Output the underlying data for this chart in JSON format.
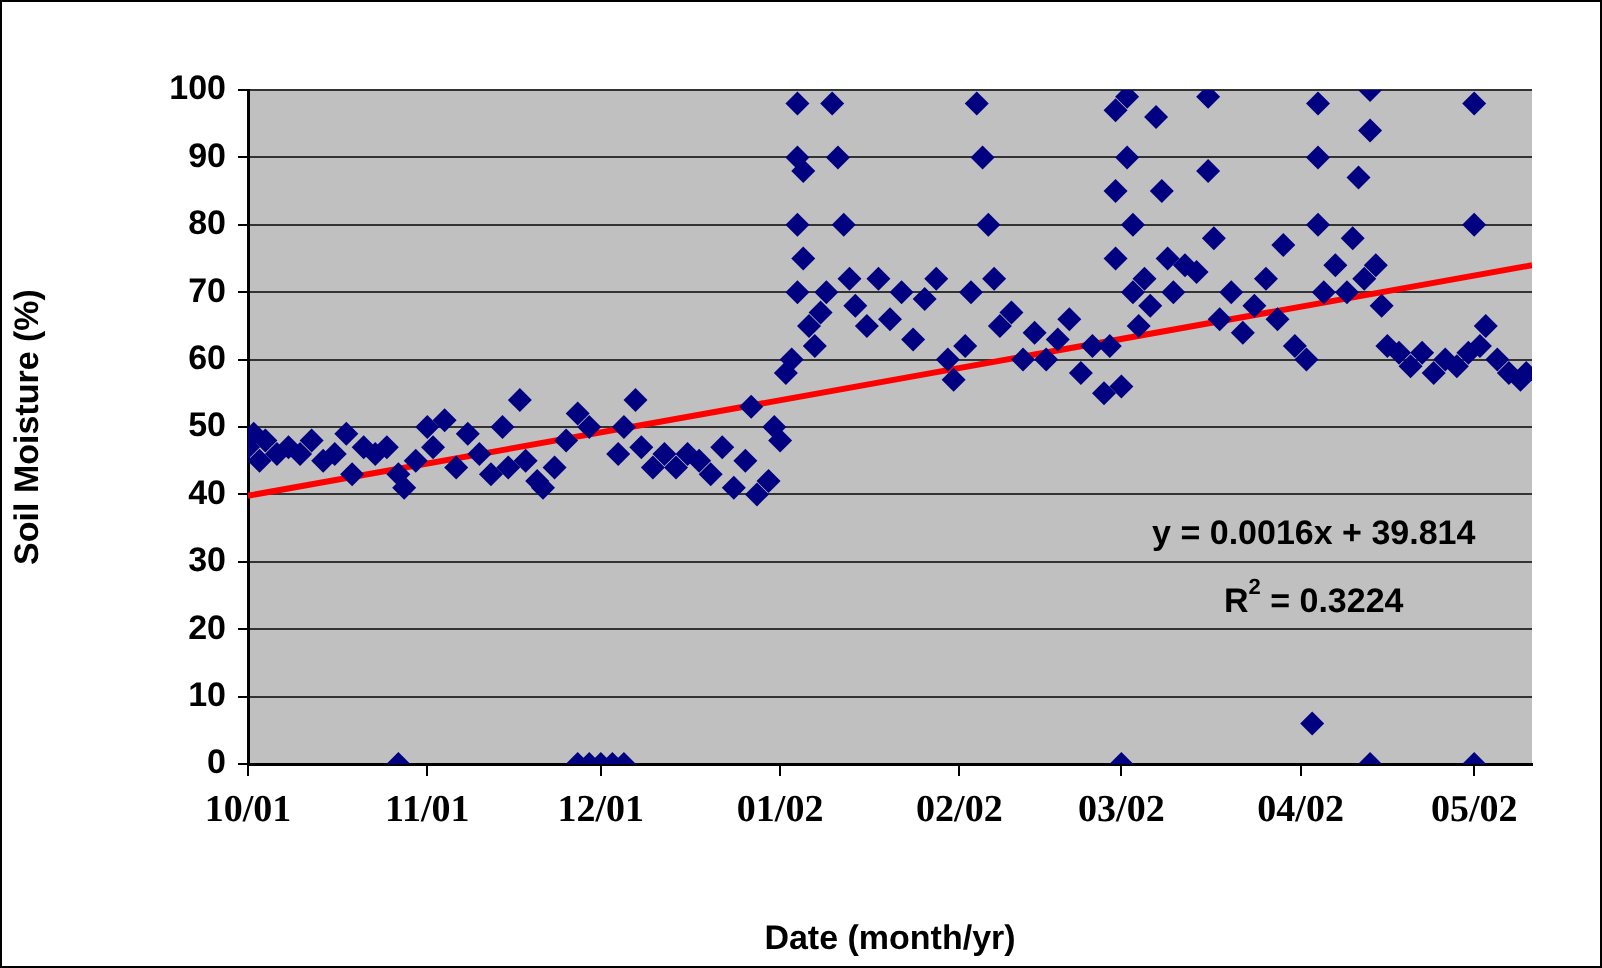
{
  "chart_data": {
    "type": "scatter",
    "xlabel": "Date (month/yr)",
    "ylabel": "Soil Moisture (%)",
    "grid": "y",
    "xlim": [
      "2001-10-01",
      "2002-05-11"
    ],
    "xticks": [
      {
        "value": "2001-10-01",
        "label": "10/01"
      },
      {
        "value": "2001-11-01",
        "label": "11/01"
      },
      {
        "value": "2001-12-01",
        "label": "12/01"
      },
      {
        "value": "2002-01-01",
        "label": "01/02"
      },
      {
        "value": "2002-02-01",
        "label": "02/02"
      },
      {
        "value": "2002-03-01",
        "label": "03/02"
      },
      {
        "value": "2002-04-01",
        "label": "04/02"
      },
      {
        "value": "2002-05-01",
        "label": "05/02"
      }
    ],
    "ylim": [
      0,
      100
    ],
    "yticks": [
      0,
      10,
      20,
      30,
      40,
      50,
      60,
      70,
      80,
      90,
      100
    ],
    "series": [
      {
        "marker": "diamond",
        "color": "#000080",
        "x": [
          "2001-10-01",
          "2001-10-02",
          "2001-10-03",
          "2001-10-04",
          "2001-10-06",
          "2001-10-08",
          "2001-10-10",
          "2001-10-12",
          "2001-10-14",
          "2001-10-16",
          "2001-10-18",
          "2001-10-19",
          "2001-10-21",
          "2001-10-23",
          "2001-10-25",
          "2001-10-27",
          "2001-10-28",
          "2001-10-30",
          "2001-11-01",
          "2001-11-02",
          "2001-11-04",
          "2001-11-06",
          "2001-11-08",
          "2001-11-10",
          "2001-11-12",
          "2001-11-14",
          "2001-11-15",
          "2001-11-17",
          "2001-11-18",
          "2001-11-20",
          "2001-11-21",
          "2001-11-23",
          "2001-11-25",
          "2001-11-27",
          "2001-11-29",
          "2001-10-27",
          "2001-11-27",
          "2001-11-29",
          "2001-12-01",
          "2001-12-03",
          "2001-12-05",
          "2001-12-04",
          "2001-12-05",
          "2001-12-07",
          "2001-12-08",
          "2001-12-10",
          "2001-12-12",
          "2001-12-14",
          "2001-12-16",
          "2001-12-18",
          "2001-12-20",
          "2001-12-22",
          "2001-12-24",
          "2001-12-26",
          "2001-12-27",
          "2001-12-28",
          "2001-12-30",
          "2001-12-31",
          "2002-01-01",
          "2002-01-02",
          "2002-01-03",
          "2002-01-04",
          "2002-01-04",
          "2002-01-04",
          "2002-01-04",
          "2002-01-05",
          "2002-01-05",
          "2002-01-06",
          "2002-01-07",
          "2002-01-08",
          "2002-01-09",
          "2002-01-10",
          "2002-01-11",
          "2002-01-12",
          "2002-01-13",
          "2002-01-14",
          "2002-01-16",
          "2002-01-18",
          "2002-01-20",
          "2002-01-22",
          "2002-01-24",
          "2002-01-26",
          "2002-01-28",
          "2002-01-30",
          "2002-01-31",
          "2002-02-02",
          "2002-02-03",
          "2002-02-04",
          "2002-02-05",
          "2002-02-06",
          "2002-02-07",
          "2002-02-08",
          "2002-02-10",
          "2002-02-12",
          "2002-02-14",
          "2002-02-16",
          "2002-02-18",
          "2002-02-20",
          "2002-02-22",
          "2002-02-24",
          "2002-02-26",
          "2002-02-27",
          "2002-02-28",
          "2002-02-28",
          "2002-02-28",
          "2002-03-01",
          "2002-03-01",
          "2002-03-02",
          "2002-03-02",
          "2002-03-03",
          "2002-03-03",
          "2002-03-04",
          "2002-03-05",
          "2002-03-06",
          "2002-03-07",
          "2002-03-08",
          "2002-03-09",
          "2002-03-10",
          "2002-03-12",
          "2002-03-14",
          "2002-03-16",
          "2002-03-16",
          "2002-03-17",
          "2002-03-18",
          "2002-03-20",
          "2002-03-22",
          "2002-03-24",
          "2002-03-26",
          "2002-03-28",
          "2002-03-29",
          "2002-03-31",
          "2002-04-02",
          "2002-04-03",
          "2002-04-04",
          "2002-04-04",
          "2002-04-04",
          "2002-04-05",
          "2002-04-07",
          "2002-04-09",
          "2002-04-10",
          "2002-04-11",
          "2002-04-12",
          "2002-04-13",
          "2002-04-13",
          "2002-04-13",
          "2002-04-14",
          "2002-04-15",
          "2002-04-16",
          "2002-04-18",
          "2002-04-20",
          "2002-04-22",
          "2002-04-24",
          "2002-04-26",
          "2002-04-28",
          "2002-04-30",
          "2002-05-01",
          "2002-05-01",
          "2002-05-01",
          "2002-05-02",
          "2002-05-03",
          "2002-05-05",
          "2002-05-07",
          "2002-05-09",
          "2002-05-10"
        ],
        "values": [
          47,
          49,
          45,
          48,
          46,
          47,
          46,
          48,
          45,
          46,
          49,
          43,
          47,
          46,
          47,
          43,
          41,
          45,
          50,
          47,
          51,
          44,
          49,
          46,
          43,
          50,
          44,
          54,
          45,
          42,
          41,
          44,
          48,
          52,
          50,
          0,
          0,
          0,
          0,
          0,
          0,
          46,
          50,
          54,
          47,
          44,
          46,
          44,
          46,
          45,
          43,
          47,
          41,
          45,
          53,
          40,
          42,
          50,
          48,
          58,
          60,
          70,
          80,
          90,
          98,
          88,
          75,
          65,
          62,
          67,
          70,
          98,
          90,
          80,
          72,
          68,
          65,
          72,
          66,
          70,
          63,
          69,
          72,
          60,
          57,
          62,
          70,
          98,
          90,
          80,
          72,
          65,
          67,
          60,
          64,
          60,
          63,
          66,
          58,
          62,
          55,
          62,
          75,
          85,
          97,
          0,
          56,
          99,
          90,
          80,
          70,
          65,
          72,
          68,
          96,
          85,
          75,
          70,
          74,
          73,
          99,
          88,
          78,
          66,
          70,
          64,
          68,
          72,
          66,
          77,
          62,
          60,
          6,
          98,
          90,
          80,
          70,
          74,
          70,
          78,
          87,
          72,
          94,
          100,
          0,
          74,
          68,
          62,
          61,
          59,
          61,
          58,
          60,
          59,
          61,
          0,
          98,
          80,
          62,
          65,
          60,
          58,
          57,
          58
        ]
      },
      {
        "type": "line",
        "marker": "none",
        "color": "#ff0000",
        "x": [
          "2001-10-01",
          "2002-05-11"
        ],
        "values": [
          39.8,
          74
        ]
      }
    ],
    "annotations": [
      "y = 0.0016x + 39.814",
      "R$^{2}$ = 0.3224"
    ]
  }
}
